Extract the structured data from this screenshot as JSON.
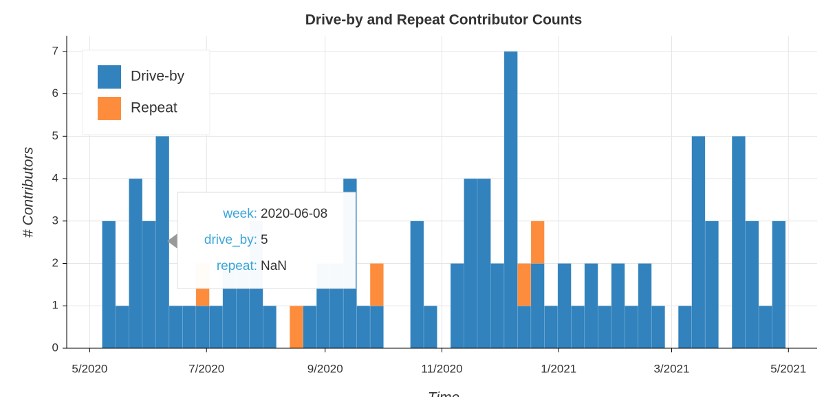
{
  "chart_data": {
    "type": "bar",
    "stacked": true,
    "title": "Drive-by and Repeat Contributor Counts",
    "x_label": "Time",
    "y_label": "# Contributors",
    "x": [
      "2020-05-11",
      "2020-05-18",
      "2020-05-25",
      "2020-06-01",
      "2020-06-08",
      "2020-06-15",
      "2020-06-22",
      "2020-06-29",
      "2020-07-06",
      "2020-07-13",
      "2020-07-20",
      "2020-07-27",
      "2020-08-03",
      "2020-08-10",
      "2020-08-17",
      "2020-08-24",
      "2020-08-31",
      "2020-09-07",
      "2020-09-14",
      "2020-09-21",
      "2020-09-28",
      "2020-10-05",
      "2020-10-12",
      "2020-10-19",
      "2020-10-26",
      "2020-11-02",
      "2020-11-09",
      "2020-11-16",
      "2020-11-23",
      "2020-11-30",
      "2020-12-07",
      "2020-12-14",
      "2020-12-21",
      "2020-12-28",
      "2021-01-04",
      "2021-01-11",
      "2021-01-18",
      "2021-01-25",
      "2021-02-01",
      "2021-02-08",
      "2021-02-15",
      "2021-02-22",
      "2021-03-01",
      "2021-03-08",
      "2021-03-15",
      "2021-03-22",
      "2021-03-29",
      "2021-04-05",
      "2021-04-12",
      "2021-04-19",
      "2021-04-26"
    ],
    "series": [
      {
        "name": "Drive-by",
        "color": "#3182bd",
        "values": [
          3,
          1,
          4,
          3,
          5,
          1,
          1,
          1,
          1,
          2,
          2,
          3,
          1,
          0,
          0,
          1,
          2,
          2,
          4,
          1,
          1,
          0,
          0,
          3,
          1,
          0,
          2,
          4,
          4,
          2,
          7,
          1,
          2,
          1,
          2,
          1,
          2,
          1,
          2,
          1,
          2,
          1,
          0,
          1,
          5,
          3,
          0,
          5,
          3,
          1,
          3
        ]
      },
      {
        "name": "Repeat",
        "color": "#fd8d3c",
        "values": [
          null,
          null,
          null,
          null,
          null,
          null,
          null,
          1,
          null,
          null,
          null,
          null,
          null,
          null,
          1,
          null,
          null,
          null,
          null,
          null,
          1,
          null,
          null,
          null,
          null,
          null,
          null,
          null,
          null,
          null,
          null,
          1,
          1,
          null,
          null,
          null,
          null,
          null,
          null,
          null,
          null,
          null,
          null,
          null,
          null,
          null,
          null,
          null,
          null,
          null,
          null
        ]
      }
    ],
    "xlim": [
      "2020-04-19",
      "2021-05-16"
    ],
    "xticks": [
      {
        "value": "2020-05-01",
        "label": "5/2020"
      },
      {
        "value": "2020-07-01",
        "label": "7/2020"
      },
      {
        "value": "2020-09-01",
        "label": "9/2020"
      },
      {
        "value": "2020-11-01",
        "label": "11/2020"
      },
      {
        "value": "2021-01-01",
        "label": "1/2021"
      },
      {
        "value": "2021-03-01",
        "label": "3/2021"
      },
      {
        "value": "2021-05-01",
        "label": "5/2021"
      }
    ],
    "ylim": [
      0,
      7.37
    ],
    "yticks": [
      0,
      1,
      2,
      3,
      4,
      5,
      6,
      7
    ],
    "grid": true,
    "legend": "top-left",
    "tooltip": {
      "rows": [
        {
          "label": "week:",
          "value": "2020-06-08"
        },
        {
          "label": "drive_by:",
          "value": "5"
        },
        {
          "label": "repeat:",
          "value": "NaN"
        }
      ]
    }
  }
}
